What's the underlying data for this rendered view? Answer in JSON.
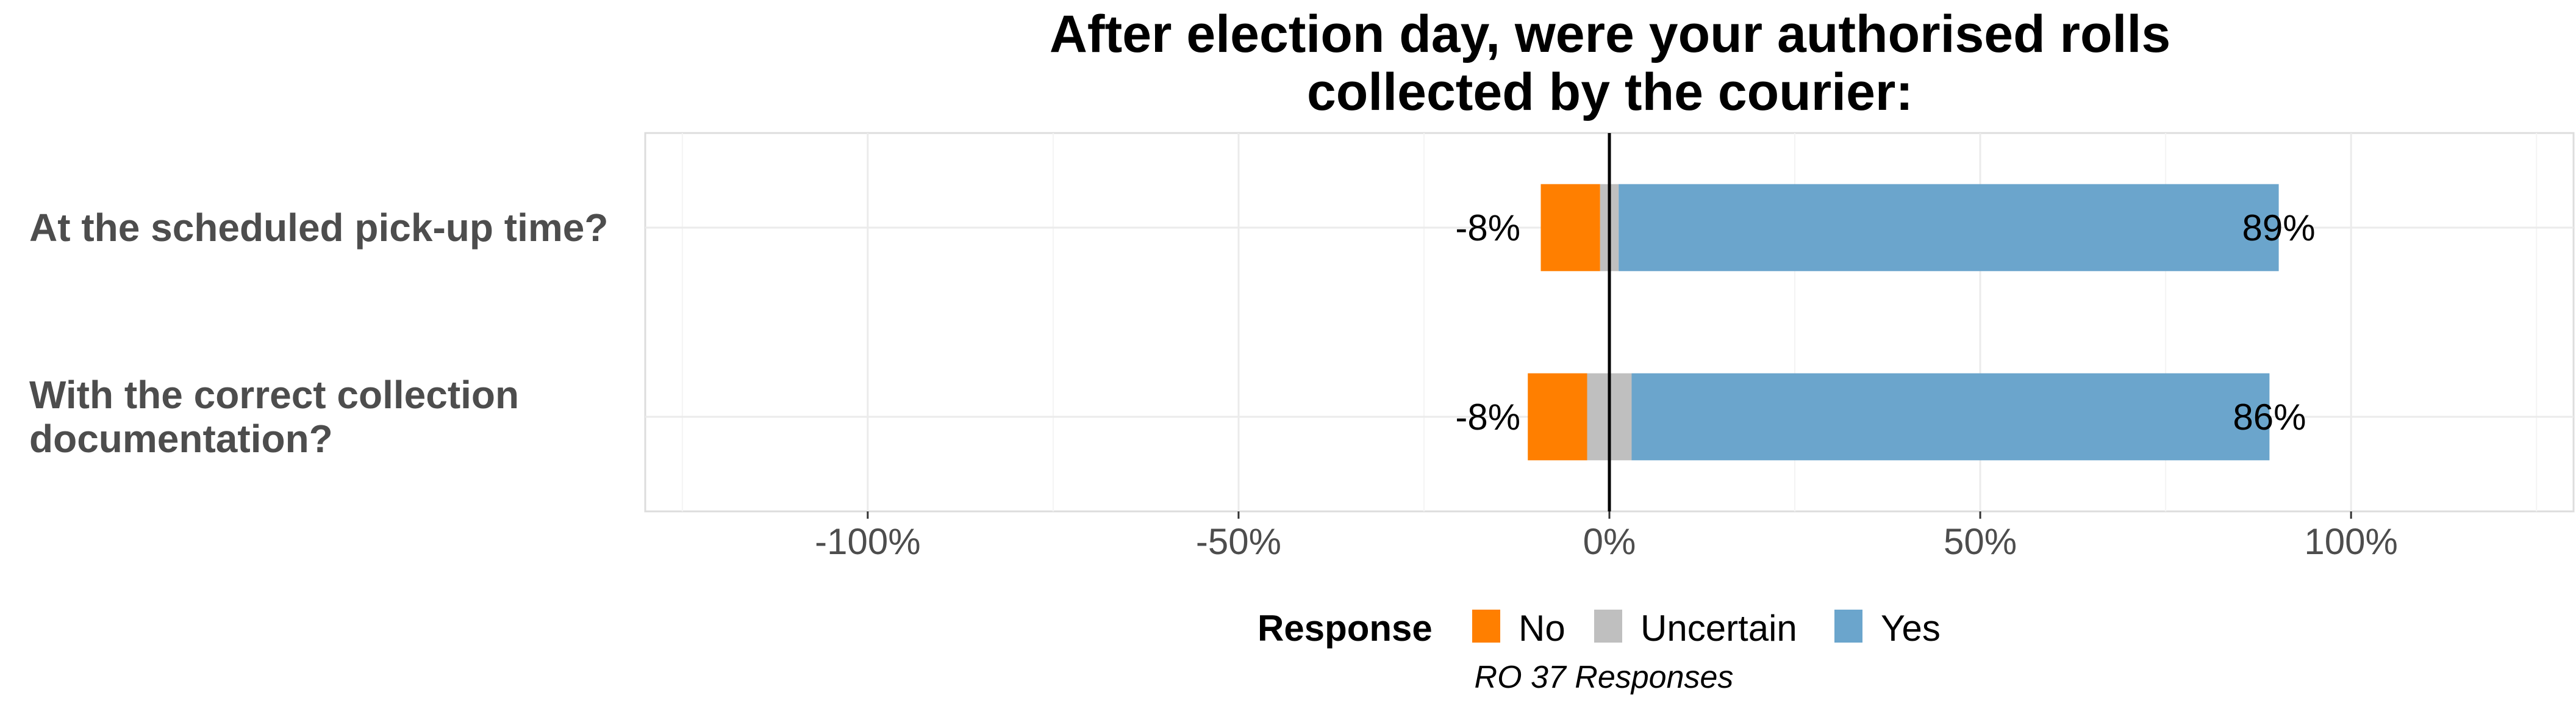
{
  "chart_data": {
    "type": "bar",
    "orientation": "horizontal",
    "stacked": "diverging",
    "title_lines": [
      "After election day, were your authorised rolls",
      "collected by the courier:"
    ],
    "categories": [
      [
        "At the scheduled pick-up time?"
      ],
      [
        "With the correct collection",
        "documentation?"
      ]
    ],
    "series": [
      {
        "name": "No",
        "color": "#ff7f00",
        "values": [
          -8,
          -8
        ]
      },
      {
        "name": "Uncertain",
        "color": "#bfbfbf",
        "values": [
          2.5,
          6
        ]
      },
      {
        "name": "Yes",
        "color": "#6ba5cc",
        "values": [
          89,
          86
        ]
      }
    ],
    "data_labels_left": [
      "-8%",
      "-8%"
    ],
    "data_labels_right": [
      "89%",
      "86%"
    ],
    "xlim": [
      -130,
      130
    ],
    "xticks": [
      -100,
      -50,
      0,
      50,
      100
    ],
    "xtick_labels": [
      "-100%",
      "-50%",
      "0%",
      "50%",
      "100%"
    ],
    "grid": true,
    "legend": {
      "title": "Response",
      "placement": "bottom",
      "items": [
        "No",
        "Uncertain",
        "Yes"
      ]
    },
    "caption": "RO 37 Responses"
  }
}
